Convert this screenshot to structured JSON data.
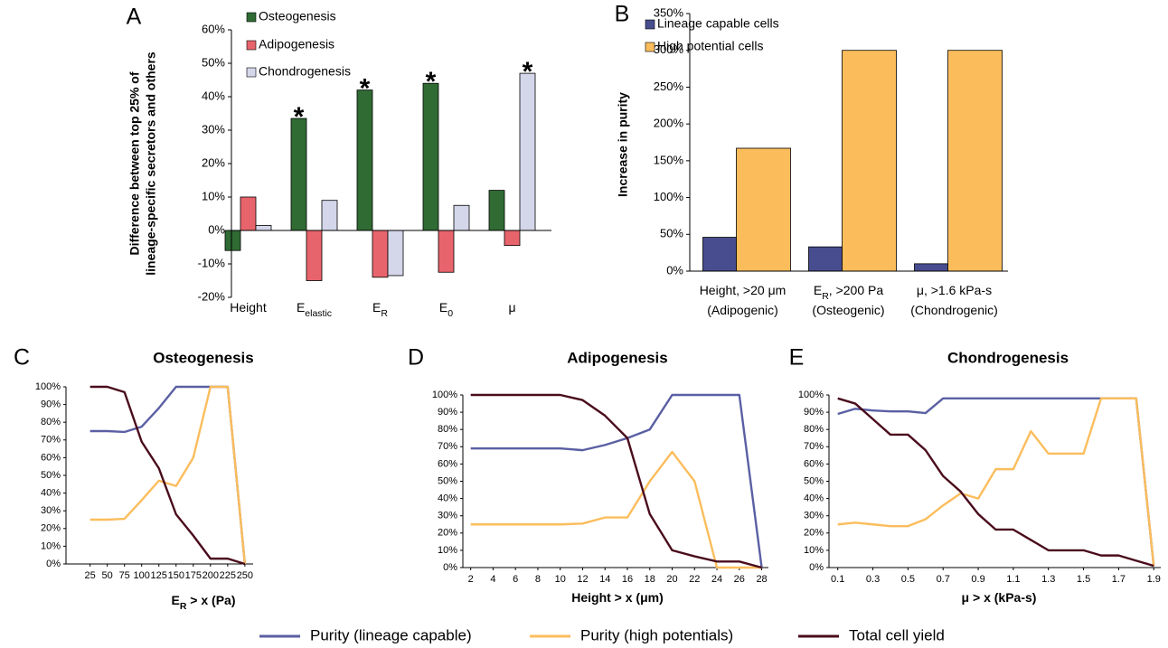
{
  "chart_data": [
    {
      "type": "bar",
      "panel_label": "A",
      "y_label": [
        "Difference between top 25% of",
        "lineage-specific secretors and others"
      ],
      "categories": [
        [
          [
            "Height"
          ]
        ],
        [
          [
            "E",
            "elastic"
          ]
        ],
        [
          [
            "E",
            "R"
          ]
        ],
        [
          [
            "E",
            "0"
          ]
        ],
        [
          [
            "μ"
          ]
        ]
      ],
      "ylim": [
        -20,
        60
      ],
      "yticks": [
        {
          "value": -20,
          "label": "-20%"
        },
        {
          "value": -10,
          "label": "-10%"
        },
        {
          "value": 0,
          "label": "0%"
        },
        {
          "value": 10,
          "label": "10%"
        },
        {
          "value": 20,
          "label": "20%"
        },
        {
          "value": 30,
          "label": "30%"
        },
        {
          "value": 40,
          "label": "40%"
        },
        {
          "value": 50,
          "label": "50%"
        },
        {
          "value": 60,
          "label": "60%"
        }
      ],
      "series": [
        {
          "name": "Osteogenesis",
          "color": "#2f6b33",
          "values": [
            -6,
            33.5,
            42,
            44,
            12
          ],
          "significance": [
            null,
            "*",
            "*",
            "*",
            null
          ]
        },
        {
          "name": "Adipogenesis",
          "color": "#e8646c",
          "values": [
            10,
            -15,
            -14,
            -12.5,
            -4.5
          ]
        },
        {
          "name": "Chondrogenesis",
          "color": "#d4d7ea",
          "values": [
            1.5,
            9,
            -13.5,
            7.5,
            47
          ],
          "significance": [
            null,
            null,
            null,
            null,
            "*"
          ]
        }
      ]
    },
    {
      "type": "bar",
      "panel_label": "B",
      "y_label": [
        "Increase in purity"
      ],
      "categories": [
        [
          [
            "Height, >20 μm"
          ],
          [
            "(Adipogenic)"
          ]
        ],
        [
          [
            "E",
            "R",
            ", >200 Pa"
          ],
          [
            "(Osteogenic)"
          ]
        ],
        [
          [
            "μ, >1.6 kPa-s"
          ],
          [
            "(Chondrogenic)"
          ]
        ]
      ],
      "ylim": [
        0,
        350
      ],
      "yticks": [
        {
          "value": 0,
          "label": "0%"
        },
        {
          "value": 50,
          "label": "50%"
        },
        {
          "value": 100,
          "label": "100%"
        },
        {
          "value": 150,
          "label": "150%"
        },
        {
          "value": 200,
          "label": "200%"
        },
        {
          "value": 250,
          "label": "250%"
        },
        {
          "value": 300,
          "label": "300%"
        },
        {
          "value": 350,
          "label": "350%"
        }
      ],
      "series": [
        {
          "name": "Lineage capable cells",
          "color": "#474d8e",
          "values": [
            46,
            33,
            10
          ]
        },
        {
          "name": "High potential cells",
          "color": "#fbbd5c",
          "values": [
            167,
            300,
            300
          ]
        }
      ]
    },
    {
      "type": "line",
      "panel_label": "C",
      "title": "Osteogenesis",
      "x_label": [
        "E",
        "R",
        " > x (Pa)"
      ],
      "x": [
        25,
        50,
        75,
        100,
        125,
        150,
        175,
        200,
        225,
        250
      ],
      "xlim": [
        -10,
        262
      ],
      "xticks": [
        25,
        50,
        75,
        100,
        125,
        150,
        175,
        200,
        225,
        250
      ],
      "ylim": [
        0,
        100
      ],
      "yticks": [
        {
          "value": 0,
          "label": "0%"
        },
        {
          "value": 10,
          "label": "10%"
        },
        {
          "value": 20,
          "label": "20%"
        },
        {
          "value": 30,
          "label": "30%"
        },
        {
          "value": 40,
          "label": "40%"
        },
        {
          "value": 50,
          "label": "50%"
        },
        {
          "value": 60,
          "label": "60%"
        },
        {
          "value": 70,
          "label": "70%"
        },
        {
          "value": 80,
          "label": "80%"
        },
        {
          "value": 90,
          "label": "90%"
        },
        {
          "value": 100,
          "label": "100%"
        }
      ],
      "series": [
        {
          "name": "Purity (lineage capable)",
          "color": "#5a5fa3",
          "values": [
            75,
            75,
            74.5,
            77.5,
            88,
            100,
            100,
            100,
            100,
            0
          ]
        },
        {
          "name": "Purity (high potentials)",
          "color": "#fbbd5c",
          "values": [
            25,
            25,
            25.5,
            36,
            47,
            44,
            60,
            100,
            100,
            0
          ]
        },
        {
          "name": "Total cell yield",
          "color": "#4a0c1c",
          "values": [
            100,
            100,
            97,
            69,
            54,
            28,
            16,
            3,
            3,
            0
          ]
        }
      ]
    },
    {
      "type": "line",
      "panel_label": "D",
      "title": "Adipogenesis",
      "x_label": [
        "Height > x (μm)"
      ],
      "x": [
        2,
        4,
        6,
        8,
        10,
        12,
        14,
        16,
        18,
        20,
        22,
        24,
        26,
        28
      ],
      "xlim": [
        1.3,
        28.6
      ],
      "xticks": [
        2,
        4,
        6,
        8,
        10,
        12,
        14,
        16,
        18,
        20,
        22,
        24,
        26,
        28
      ],
      "ylim": [
        0,
        100
      ],
      "yticks": [
        {
          "value": 0,
          "label": "0%"
        },
        {
          "value": 10,
          "label": "10%"
        },
        {
          "value": 20,
          "label": "20%"
        },
        {
          "value": 30,
          "label": "30%"
        },
        {
          "value": 40,
          "label": "40%"
        },
        {
          "value": 50,
          "label": "50%"
        },
        {
          "value": 60,
          "label": "60%"
        },
        {
          "value": 70,
          "label": "70%"
        },
        {
          "value": 80,
          "label": "80%"
        },
        {
          "value": 90,
          "label": "90%"
        },
        {
          "value": 100,
          "label": "100%"
        }
      ],
      "series": [
        {
          "color": "#5a5fa3",
          "values": [
            69,
            69,
            69,
            69,
            69,
            68,
            71,
            75,
            80,
            100,
            100,
            100,
            100,
            0
          ]
        },
        {
          "color": "#fbbd5c",
          "values": [
            25,
            25,
            25,
            25,
            25,
            25.5,
            29,
            29,
            50,
            67,
            50,
            0,
            0,
            0
          ]
        },
        {
          "color": "#4a0c1c",
          "values": [
            100,
            100,
            100,
            100,
            100,
            97,
            88,
            75,
            31,
            10,
            6.5,
            3.5,
            3.5,
            0
          ]
        }
      ]
    },
    {
      "type": "line",
      "panel_label": "E",
      "title": "Chondrogenesis",
      "x_label": [
        "μ > x (kPa-s)"
      ],
      "x": [
        0.1,
        0.2,
        0.3,
        0.4,
        0.5,
        0.6,
        0.7,
        0.8,
        0.9,
        1.0,
        1.1,
        1.2,
        1.3,
        1.4,
        1.5,
        1.6,
        1.7,
        1.8,
        1.9
      ],
      "xlim": [
        0.05,
        1.94
      ],
      "xticks": [
        0.1,
        0.3,
        0.5,
        0.7,
        0.9,
        1.1,
        1.3,
        1.5,
        1.7,
        1.9
      ],
      "ylim": [
        0,
        100
      ],
      "yticks": [
        {
          "value": 0,
          "label": "0%"
        },
        {
          "value": 10,
          "label": "10%"
        },
        {
          "value": 20,
          "label": "20%"
        },
        {
          "value": 30,
          "label": "30%"
        },
        {
          "value": 40,
          "label": "40%"
        },
        {
          "value": 50,
          "label": "50%"
        },
        {
          "value": 60,
          "label": "60%"
        },
        {
          "value": 70,
          "label": "70%"
        },
        {
          "value": 80,
          "label": "80%"
        },
        {
          "value": 90,
          "label": "90%"
        },
        {
          "value": 100,
          "label": "100%"
        }
      ],
      "series": [
        {
          "color": "#5a5fa3",
          "values": [
            89,
            92,
            91,
            90.5,
            90.5,
            89.5,
            98,
            98,
            98,
            98,
            98,
            98,
            98,
            98,
            98,
            98,
            98,
            98,
            1
          ]
        },
        {
          "color": "#fbbd5c",
          "values": [
            25,
            26,
            25,
            24,
            24,
            28,
            36,
            43,
            40,
            57,
            57,
            79,
            66,
            66,
            66,
            98,
            98,
            98,
            1
          ]
        },
        {
          "color": "#4a0c1c",
          "values": [
            98,
            95,
            86,
            77,
            77,
            68,
            53,
            44,
            31,
            22,
            22,
            16,
            10,
            10,
            10,
            7,
            7,
            4,
            1
          ]
        }
      ]
    }
  ]
}
